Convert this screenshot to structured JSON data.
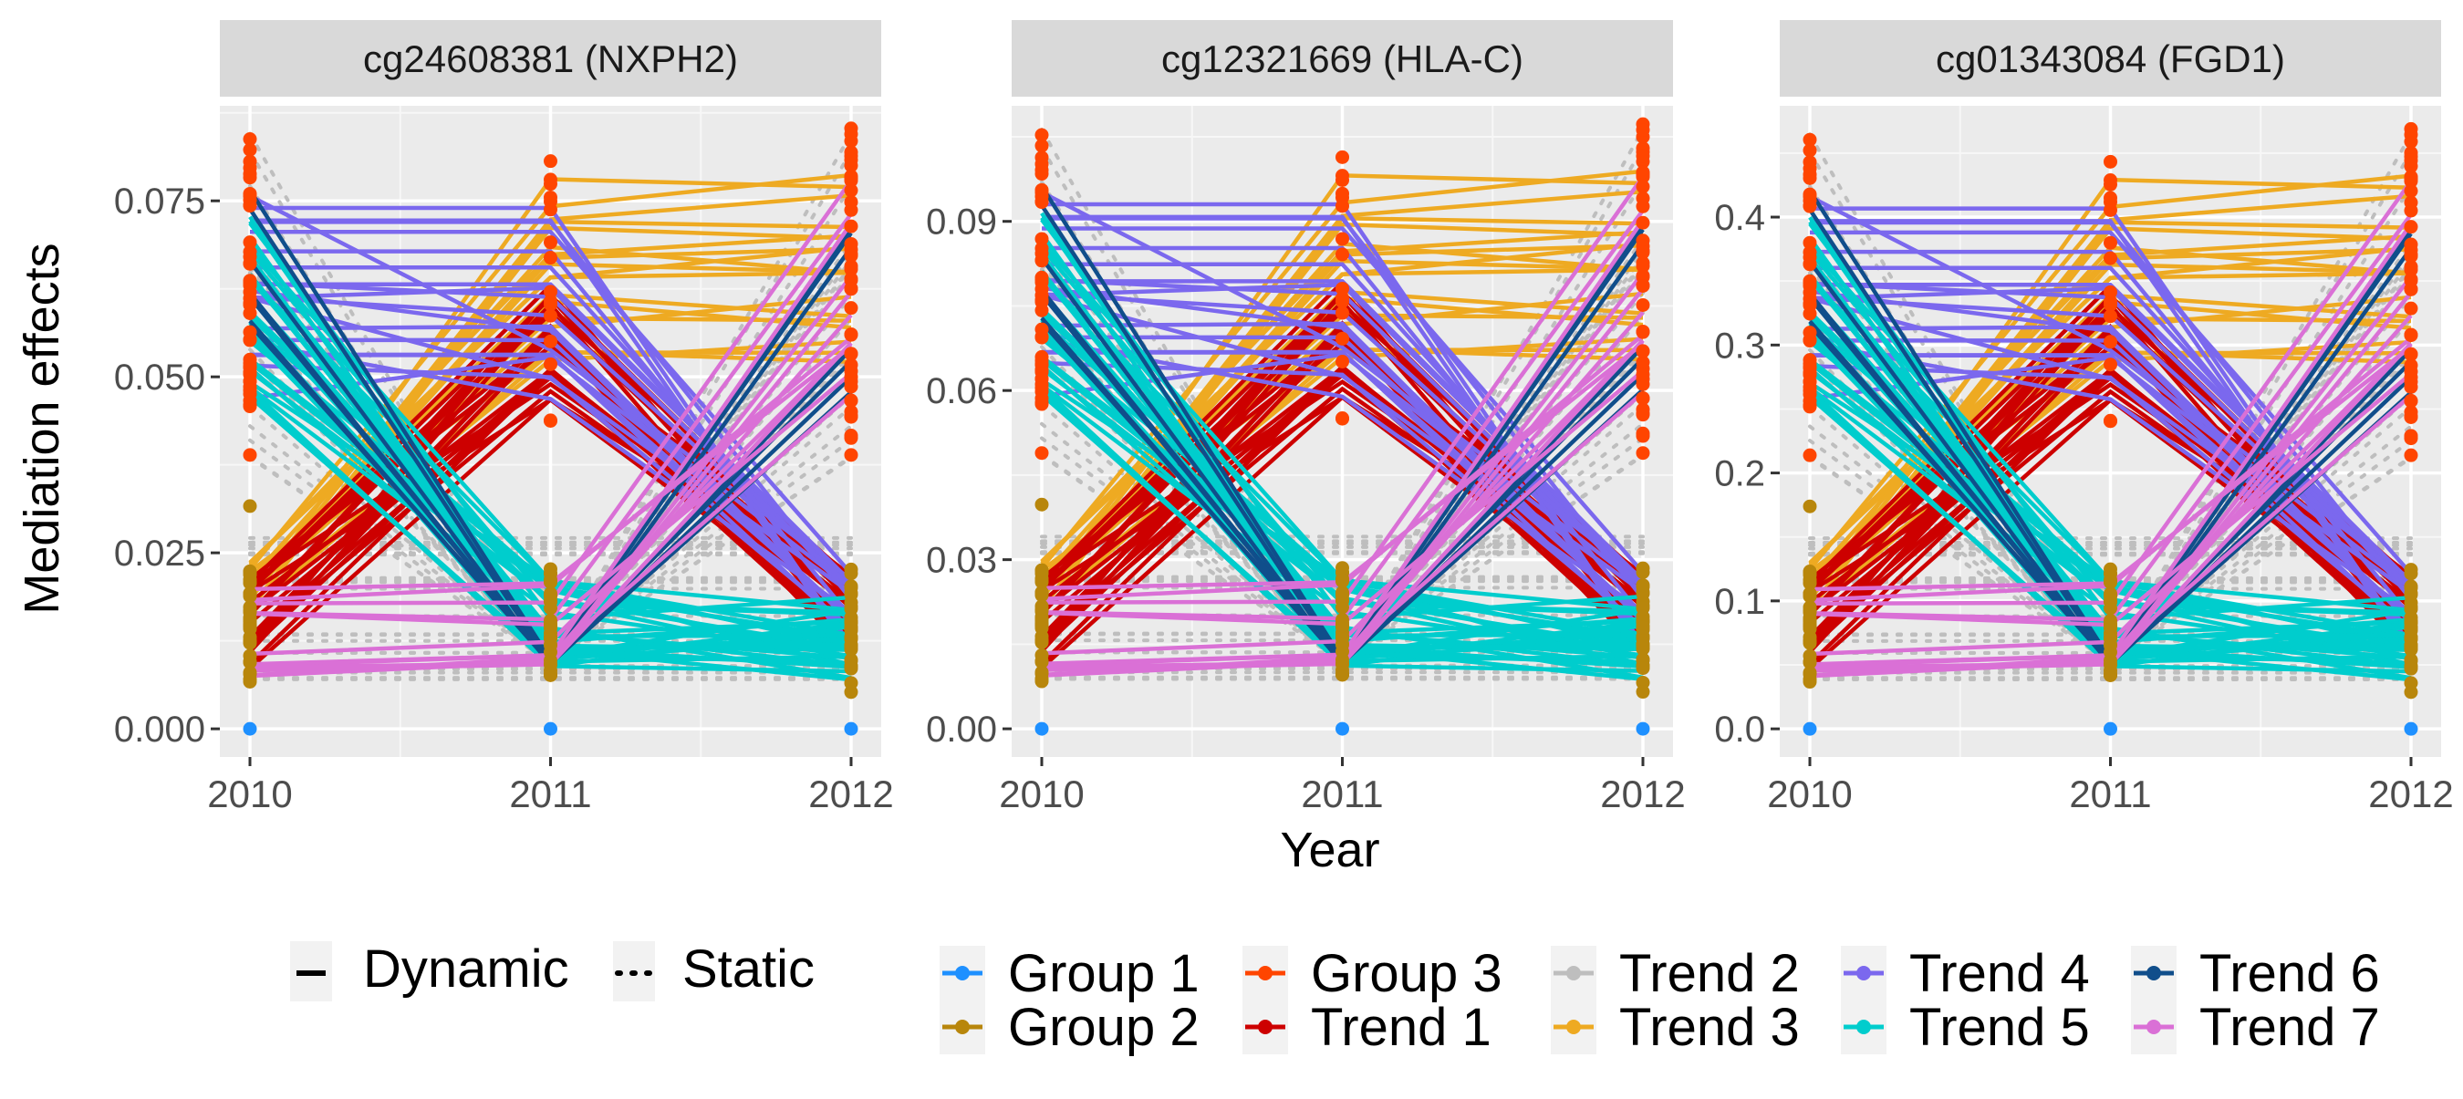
{
  "chart_data": {
    "type": "line",
    "ylabel": "Mediation effects",
    "xlabel": "Year",
    "x": [
      "2010",
      "2011",
      "2012"
    ],
    "panels": [
      {
        "title": "cg24608381 (NXPH2)",
        "ylim": [
          -0.004,
          0.0885
        ],
        "yticks": [
          0.0,
          0.025,
          0.05,
          0.075
        ],
        "ytick_labels": [
          "0.000",
          "0.025",
          "0.050",
          "0.075"
        ]
      },
      {
        "title": "cg12321669 (HLA-C)",
        "ylim": [
          -0.005,
          0.1105
        ],
        "yticks": [
          0.0,
          0.03,
          0.06,
          0.09
        ],
        "ytick_labels": [
          "0.00",
          "0.03",
          "0.06",
          "0.09"
        ]
      },
      {
        "title": "cg01343084 (FGD1)",
        "ylim": [
          -0.022,
          0.487
        ],
        "yticks": [
          0.0,
          0.1,
          0.2,
          0.3,
          0.4
        ],
        "ytick_labels": [
          "0.0",
          "0.1",
          "0.2",
          "0.3",
          "0.4"
        ]
      }
    ],
    "series": [
      {
        "name": "Group 1",
        "color": "#1e90ff",
        "linetype": "point",
        "values": [
          0.0,
          0.0,
          0.0
        ]
      },
      {
        "name": "Group 2",
        "color": "#b8860b",
        "linetype": "point",
        "values": [
          0.012,
          0.012,
          0.012
        ]
      },
      {
        "name": "Group 3",
        "color": "#ff4500",
        "linetype": "point",
        "values": [
          0.065,
          0.065,
          0.065
        ]
      },
      {
        "name": "Trend 1",
        "color": "#cd0000",
        "linetype": "solid",
        "values": [
          0.012,
          0.052,
          0.015
        ]
      },
      {
        "name": "Trend 2",
        "color": "#bebebe",
        "linetype": "dotted",
        "values": [
          0.085,
          0.01,
          0.085
        ]
      },
      {
        "name": "Trend 3",
        "color": "#eeaa22",
        "linetype": "solid",
        "values": [
          0.018,
          0.075,
          0.075
        ]
      },
      {
        "name": "Trend 4",
        "color": "#7b68ee",
        "linetype": "solid",
        "values": [
          0.062,
          0.062,
          0.012
        ]
      },
      {
        "name": "Trend 5",
        "color": "#00cdcd",
        "linetype": "solid",
        "values": [
          0.058,
          0.015,
          0.015
        ]
      },
      {
        "name": "Trend 6",
        "color": "#104e8b",
        "linetype": "solid",
        "values": [
          0.07,
          0.01,
          0.07
        ]
      },
      {
        "name": "Trend 7",
        "color": "#da70d6",
        "linetype": "solid",
        "values": [
          0.018,
          0.018,
          0.065
        ]
      }
    ],
    "legend": {
      "position": "bottom",
      "linetype_items": [
        "Dynamic",
        "Static"
      ],
      "color_items": [
        "Group 1",
        "Group 2",
        "Group 3",
        "Trend 1",
        "Trend 2",
        "Trend 3",
        "Trend 4",
        "Trend 5",
        "Trend 6",
        "Trend 7"
      ]
    }
  }
}
